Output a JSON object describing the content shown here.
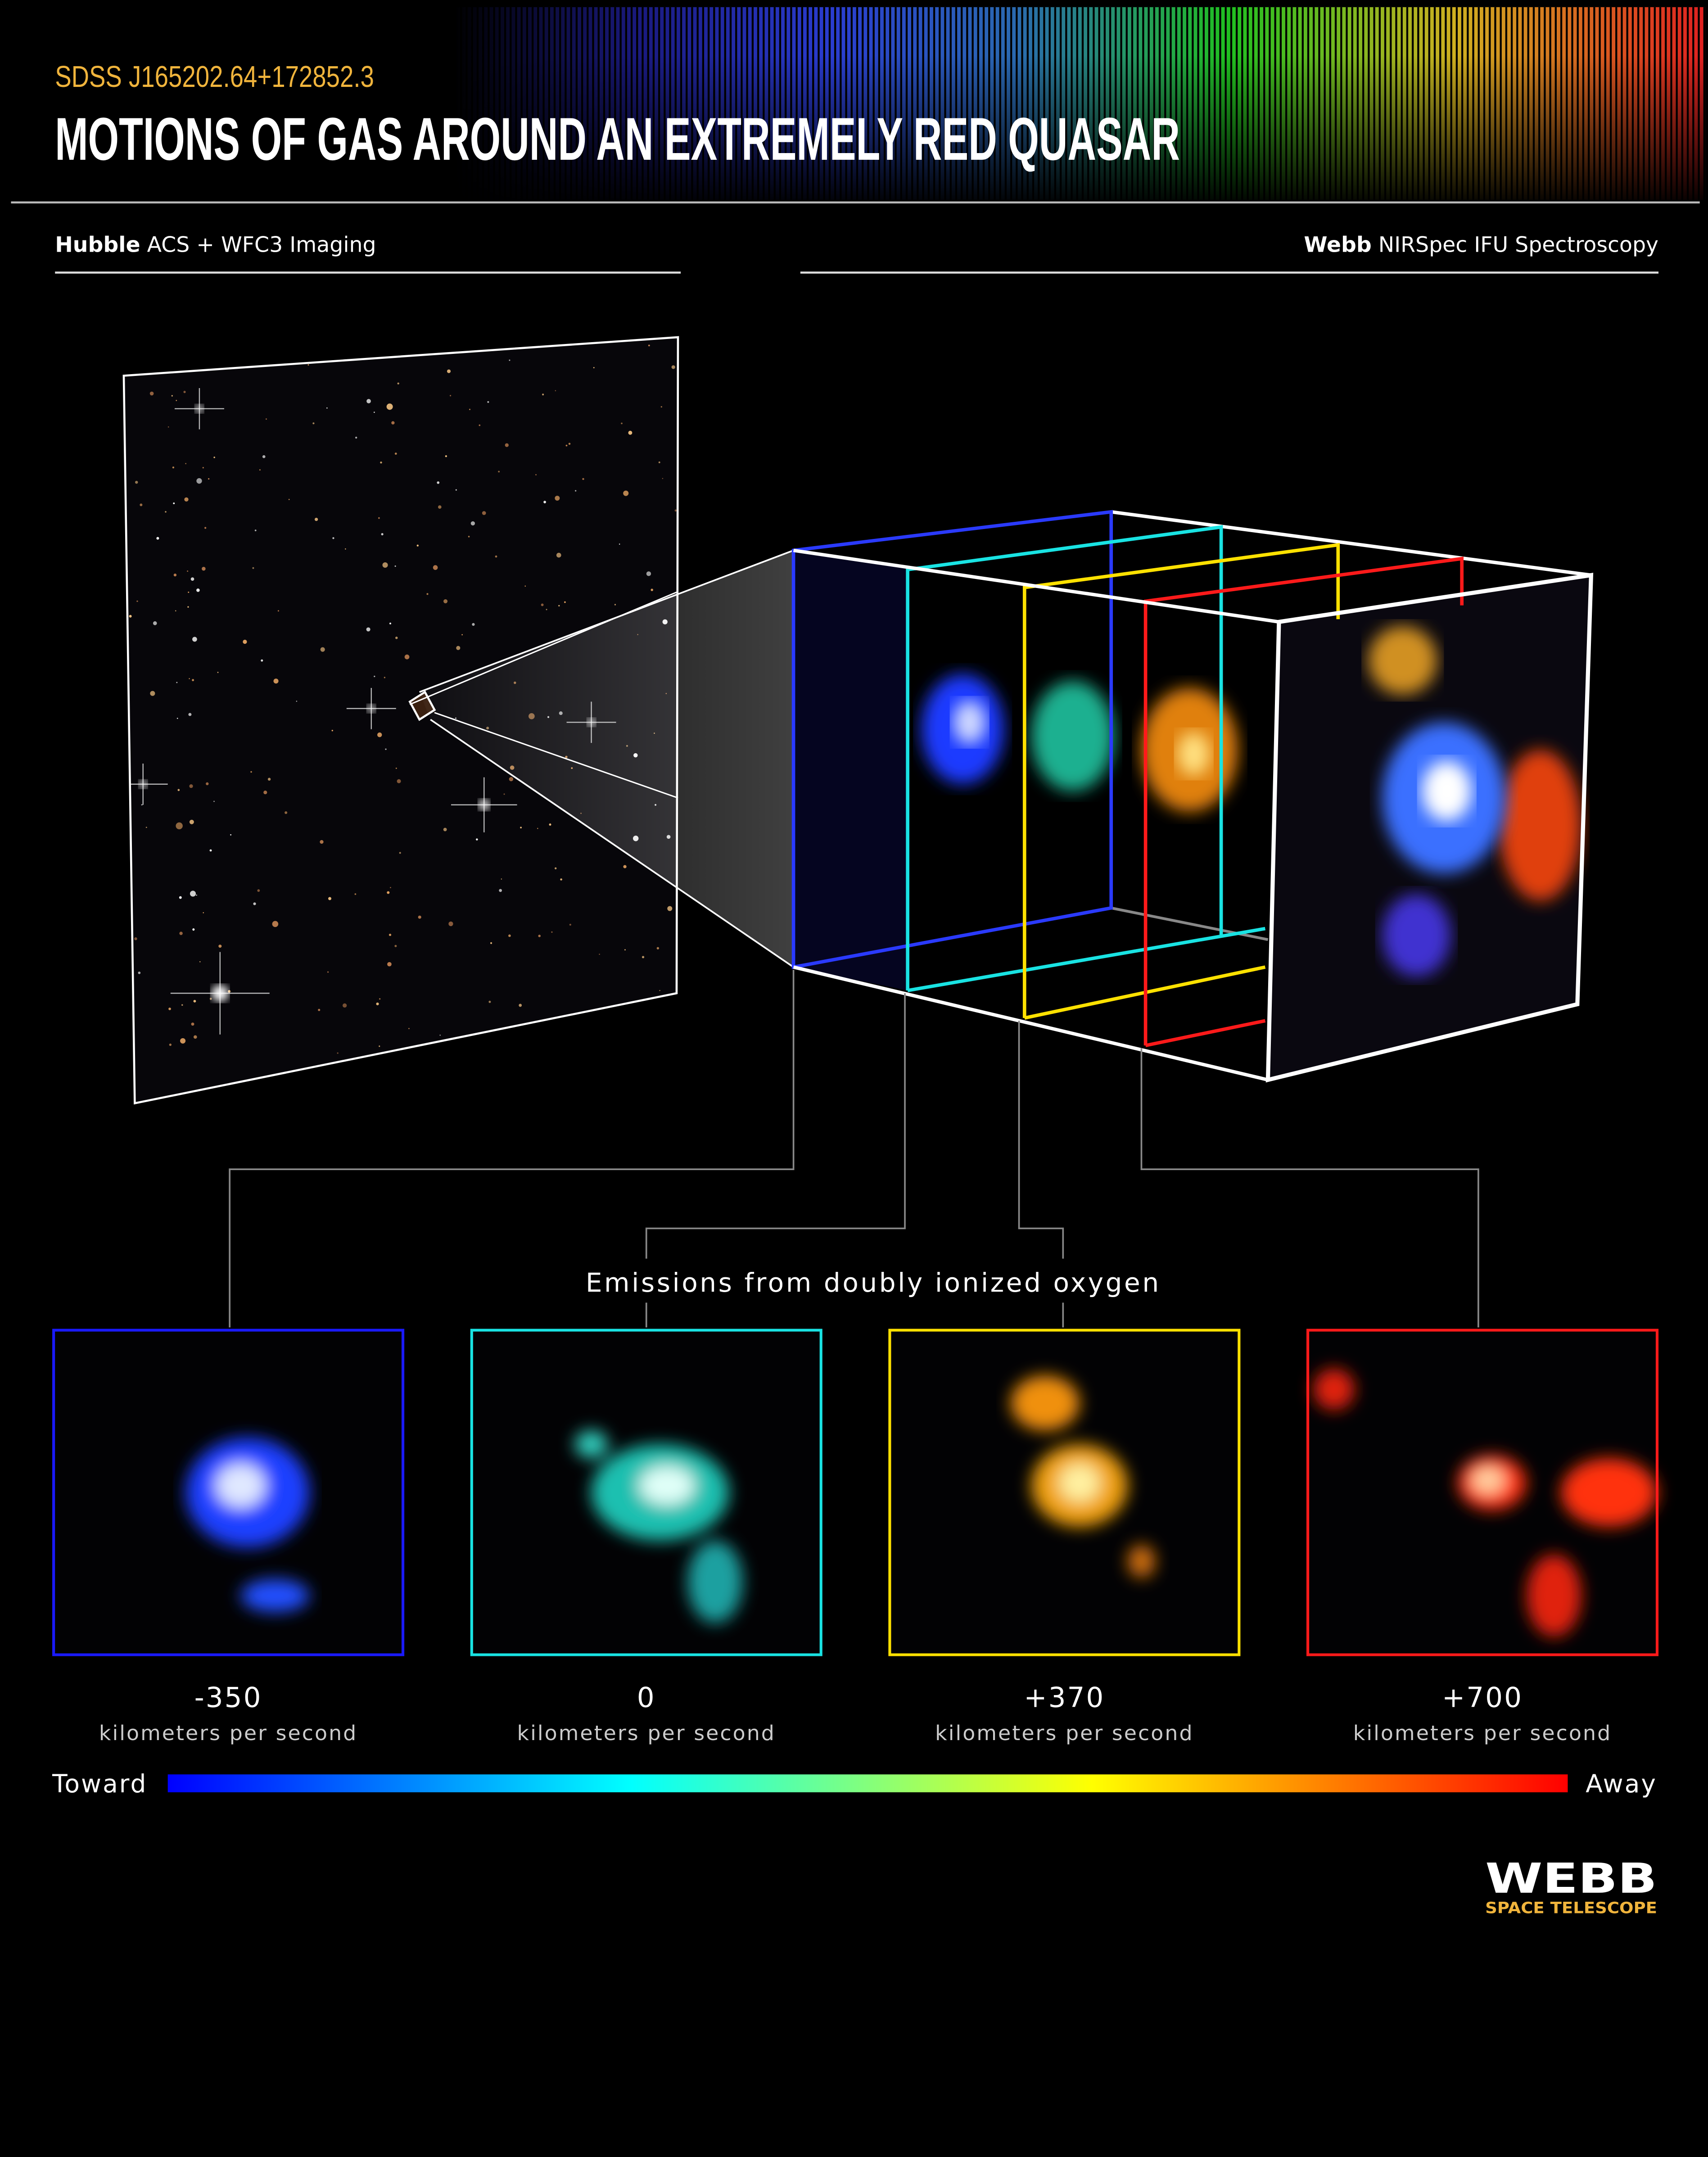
{
  "header": {
    "object_name": "SDSS J165202.64+172852.3",
    "title": "MOTIONS OF GAS AROUND AN EXTREMELY RED QUASAR"
  },
  "sections": {
    "left": {
      "bold": "Hubble",
      "rest": " ACS + WFC3 Imaging"
    },
    "right": {
      "bold": "Webb",
      "rest": " NIRSpec IFU Spectroscopy"
    }
  },
  "caption": "Emissions from doubly ionized oxygen",
  "panels": [
    {
      "value": "-350",
      "unit": "kilometers per second",
      "color": "#1a1aff"
    },
    {
      "value": "0",
      "unit": "kilometers per second",
      "color": "#19e3e3"
    },
    {
      "value": "+370",
      "unit": "kilometers per second",
      "color": "#ffe100"
    },
    {
      "value": "+700",
      "unit": "kilometers per second",
      "color": "#ff1a1a"
    }
  ],
  "colorbar": {
    "left_label": "Toward",
    "right_label": "Away",
    "colors": [
      "#0000ff",
      "#00ffff",
      "#ffff00",
      "#ff0000"
    ]
  },
  "logo": {
    "name": "WEBB",
    "tagline": "SPACE TELESCOPE"
  },
  "colors": {
    "accent": "#f0b43c",
    "text": "#ffffff",
    "background": "#000000"
  }
}
